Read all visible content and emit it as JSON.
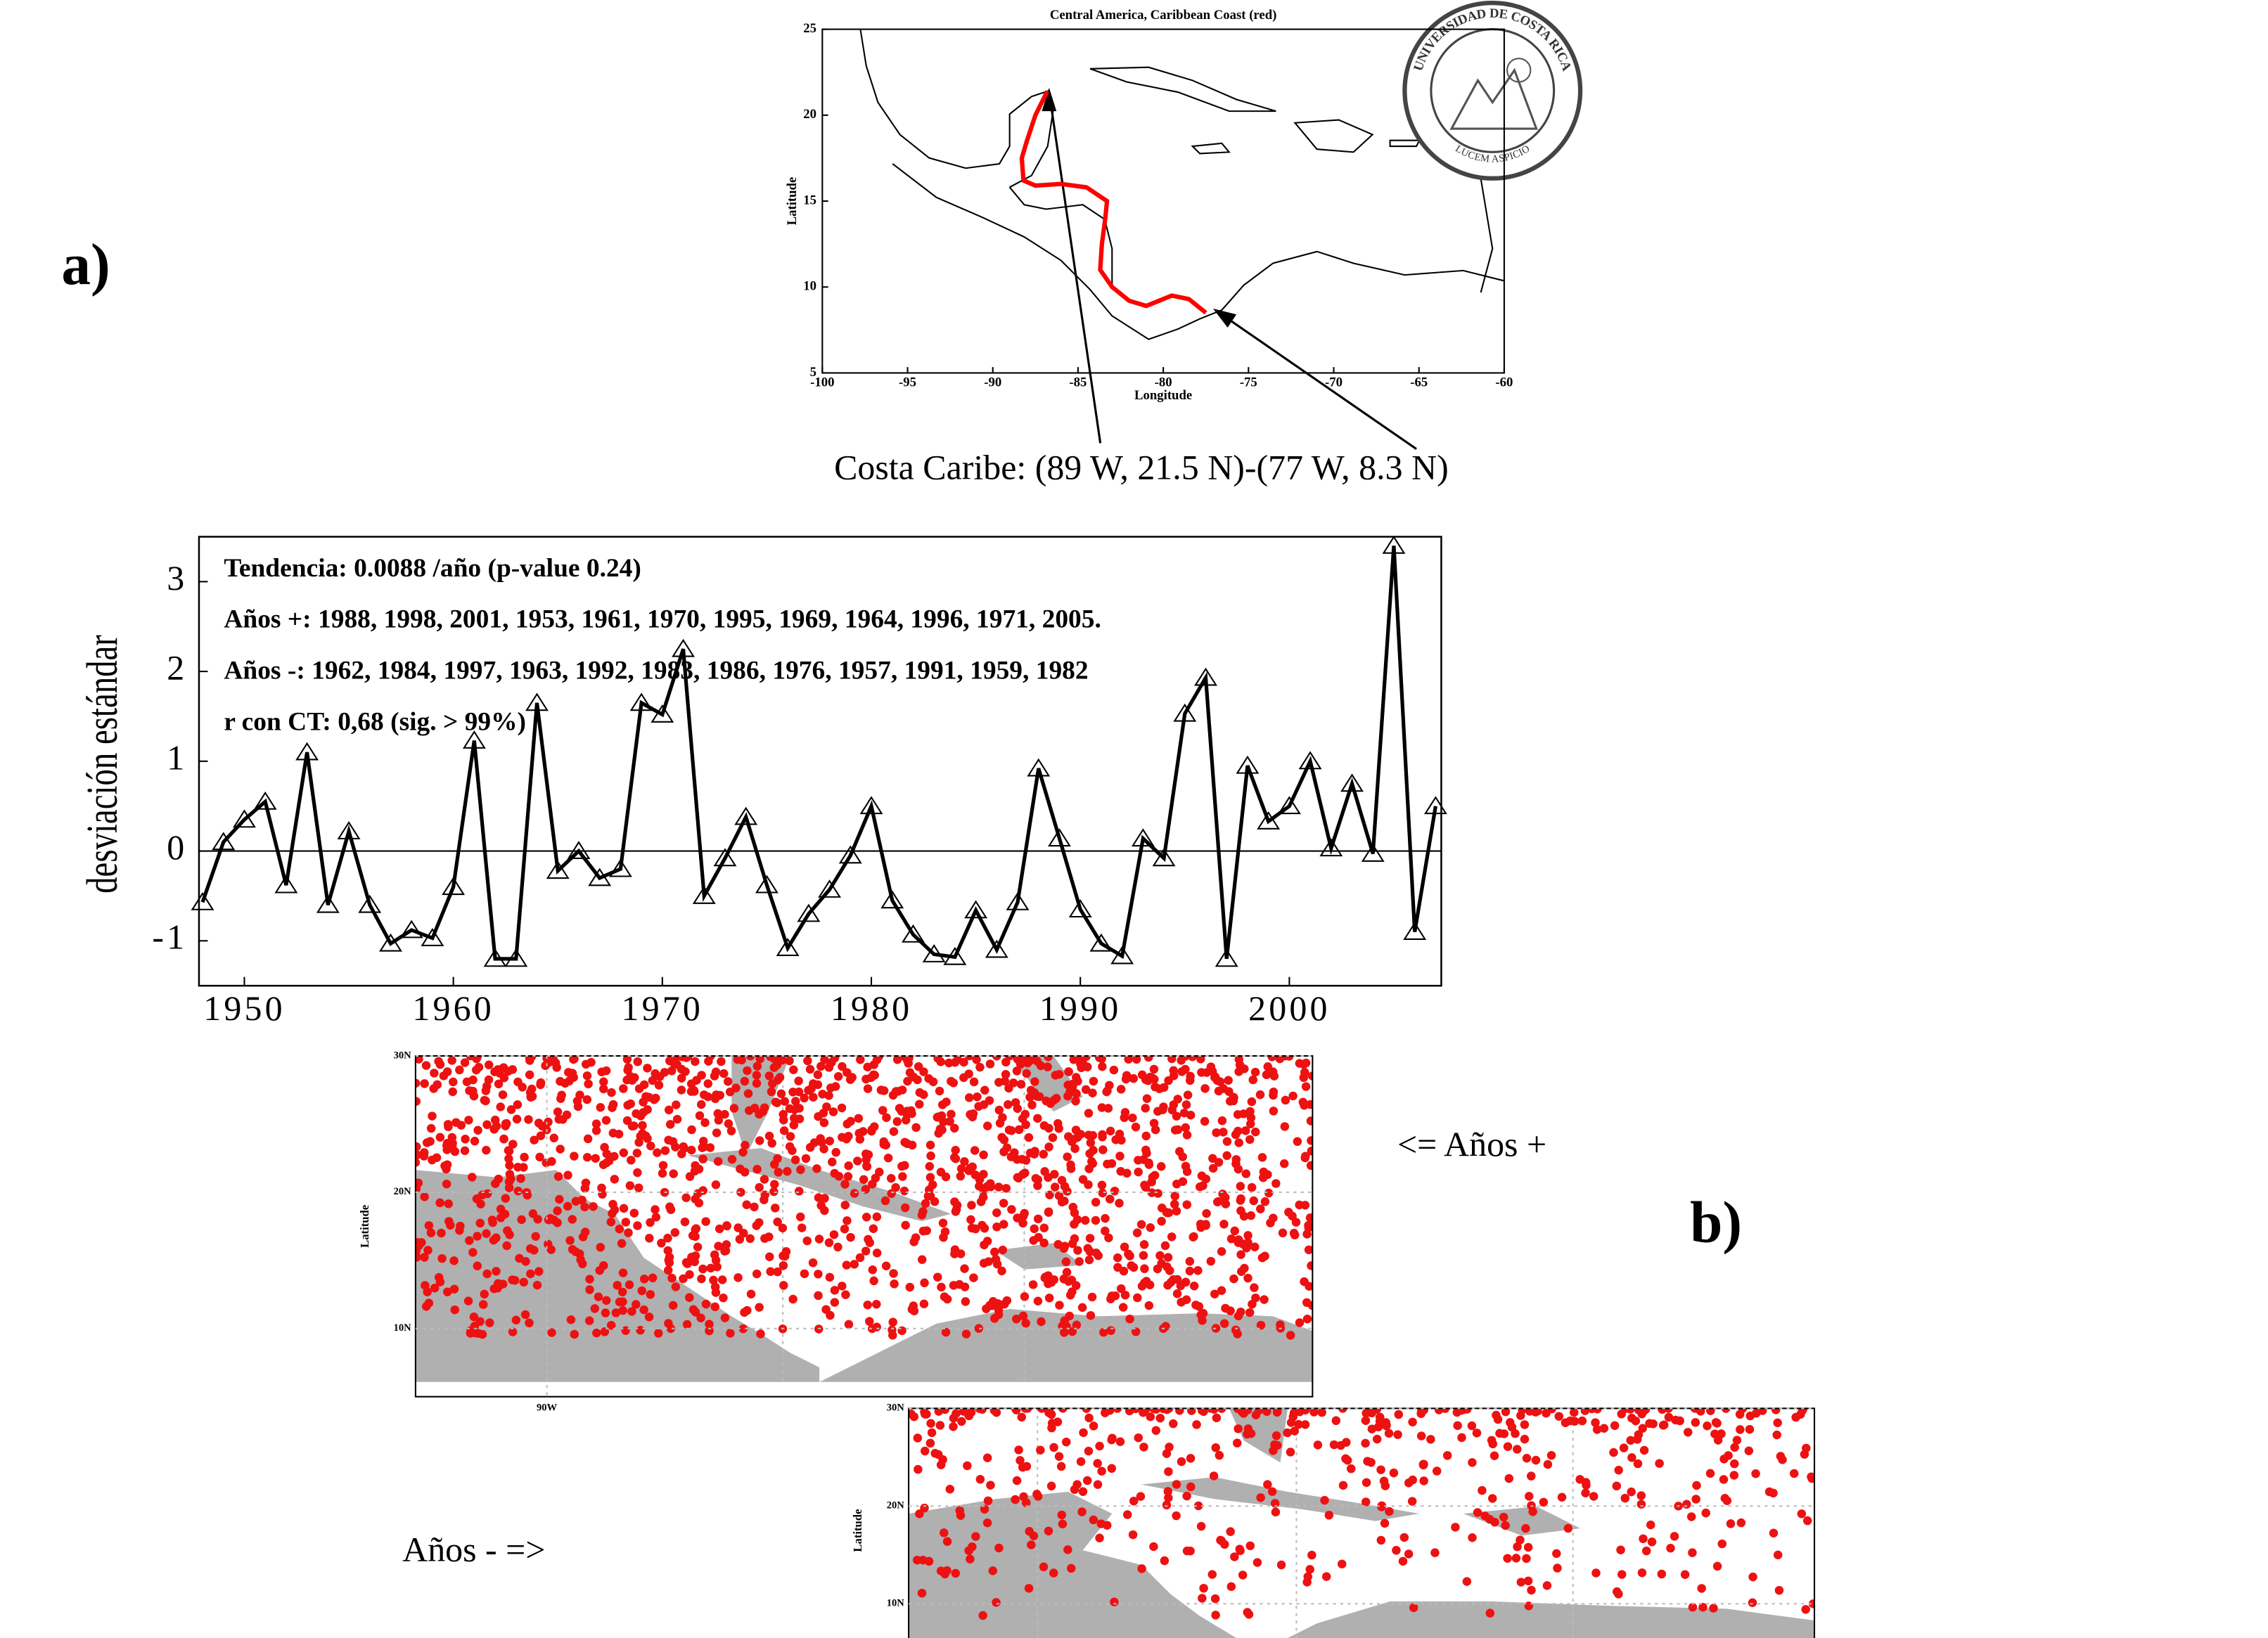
{
  "labels": {
    "a": "a)",
    "b": "b)",
    "plus": "<= Años +",
    "minus": "Años - =>",
    "logo": "UNIVERSIDAD DE COSTA RICA",
    "motto": "LUCEM ASPICIO"
  },
  "chart_data": [
    {
      "type": "map",
      "title": "Central America, Caribbean Coast (red)",
      "xlabel": "Longitude",
      "ylabel": "Latitude",
      "xlim": [
        -100,
        -60
      ],
      "ylim": [
        5,
        25
      ],
      "xticks": [
        -100,
        -95,
        -90,
        -85,
        -80,
        -75,
        -70,
        -65,
        -60
      ],
      "yticks": [
        5,
        10,
        15,
        20,
        25
      ],
      "annotation": "Costa Caribe: (89 W, 21.5 N)-(77 W, 8.3 N)",
      "series": [
        {
          "color": "#ff0000",
          "x": [
            -86.8,
            -87.5,
            -88.0,
            -88.3,
            -88.2,
            -87.5,
            -86.0,
            -84.5,
            -83.3,
            -83.4,
            -83.6,
            -83.7,
            -83.0,
            -82.0,
            -81.0,
            -79.5,
            -78.5,
            -77.5
          ],
          "y": [
            21.4,
            20.0,
            18.5,
            17.5,
            16.2,
            15.9,
            16.0,
            15.8,
            15.0,
            14.0,
            12.5,
            11.0,
            10.0,
            9.2,
            8.9,
            9.5,
            9.3,
            8.5
          ]
        }
      ]
    },
    {
      "type": "line",
      "ylabel": "desviación estándar",
      "color": "#000000",
      "xlim": [
        1947.83,
        2007.27
      ],
      "ylim": [
        -1.5,
        3.5
      ],
      "xticks": [
        1950,
        1960,
        1970,
        1980,
        1990,
        2000
      ],
      "yticks": [
        -1,
        0,
        1,
        2,
        3
      ],
      "zero_line": true,
      "annotations": [
        "Tendencia: 0.0088 /año (p-value 0.24)",
        "Años +: 1988, 1998, 2001, 1953, 1961, 1970, 1995, 1969, 1964, 1996, 1971, 2005.",
        "Años -: 1962, 1984, 1997, 1963, 1992, 1983, 1986, 1976, 1957, 1991, 1959, 1982",
        "r con CT: 0,68 (sig. > 99%)"
      ],
      "x": [
        1948,
        1949,
        1950,
        1951,
        1952,
        1953,
        1954,
        1955,
        1956,
        1957,
        1958,
        1959,
        1960,
        1961,
        1962,
        1963,
        1964,
        1965,
        1966,
        1967,
        1968,
        1969,
        1970,
        1971,
        1972,
        1973,
        1974,
        1975,
        1976,
        1977,
        1978,
        1979,
        1980,
        1981,
        1982,
        1983,
        1984,
        1985,
        1986,
        1987,
        1988,
        1989,
        1990,
        1991,
        1992,
        1993,
        1994,
        1995,
        1996,
        1997,
        1998,
        1999,
        2000,
        2001,
        2002,
        2003,
        2004,
        2005,
        2006,
        2007
      ],
      "values": [
        -0.57,
        0.1,
        0.35,
        0.55,
        -0.38,
        1.1,
        -0.6,
        0.22,
        -0.6,
        -1.03,
        -0.88,
        -0.97,
        -0.4,
        1.23,
        -1.2,
        -1.2,
        1.65,
        -0.22,
        0.0,
        -0.3,
        -0.2,
        1.65,
        1.52,
        2.25,
        -0.5,
        -0.08,
        0.38,
        -0.38,
        -1.08,
        -0.7,
        -0.43,
        -0.05,
        0.5,
        -0.55,
        -0.93,
        -1.15,
        -1.18,
        -0.66,
        -1.1,
        -0.57,
        0.92,
        0.14,
        -0.65,
        -1.03,
        -1.17,
        0.14,
        -0.08,
        1.53,
        1.93,
        -1.2,
        0.95,
        0.33,
        0.5,
        1.0,
        0.03,
        0.75,
        -0.03,
        3.4,
        -0.9,
        0.5
      ]
    },
    {
      "type": "dotmap",
      "ylabel": "Latitude",
      "xlim": [
        -96,
        -55
      ],
      "ylim": [
        5,
        30
      ],
      "xticks": [
        {
          "value": -90,
          "label": "90W"
        }
      ],
      "yticks": [
        {
          "value": 10,
          "label": "10N"
        },
        {
          "value": 20,
          "label": "20N"
        },
        {
          "value": 30,
          "label": "30N"
        }
      ]
    },
    {
      "type": "dotmap",
      "ylabel": "Latitude",
      "xlim": [
        -96,
        -55
      ],
      "ylim": [
        5,
        30
      ],
      "yticks": [
        {
          "value": 10,
          "label": "10N"
        },
        {
          "value": 20,
          "label": "20N"
        },
        {
          "value": 30,
          "label": "30N"
        }
      ]
    }
  ]
}
